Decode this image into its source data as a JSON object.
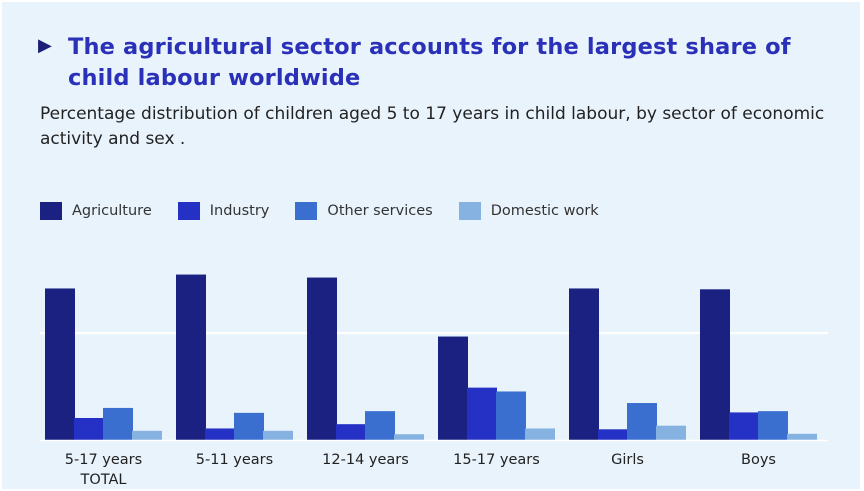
{
  "chart_data": {
    "type": "bar",
    "title": "The agricultural sector accounts for the largest share of child labour worldwide",
    "subtitle": "Percentage distribution of children aged 5 to 17 years in child labour, by sector of economic activity and sex .",
    "categories": [
      [
        "5-17 years",
        "TOTAL"
      ],
      [
        "5-11 years"
      ],
      [
        "12-14 years"
      ],
      [
        "15-17 years"
      ],
      [
        "Girls"
      ],
      [
        "Boys"
      ]
    ],
    "series": [
      {
        "name": "Agriculture",
        "color": "#1b2180",
        "values": [
          70.9,
          77.4,
          76.0,
          48.4,
          70.9,
          70.5
        ]
      },
      {
        "name": "Industry",
        "color": "#2431c4",
        "values": [
          10.3,
          5.4,
          7.4,
          24.5,
          5.0,
          12.9
        ]
      },
      {
        "name": "Other services",
        "color": "#3a6fd0",
        "values": [
          15.0,
          12.7,
          13.5,
          22.7,
          17.3,
          13.5
        ]
      },
      {
        "name": "Domestic work",
        "color": "#86b2e2",
        "values": [
          4.3,
          4.3,
          2.7,
          5.4,
          6.7,
          2.9
        ]
      }
    ],
    "ylim": [
      0,
      80
    ],
    "gridlines": [
      50
    ],
    "grid": true,
    "legend": "top-left"
  }
}
